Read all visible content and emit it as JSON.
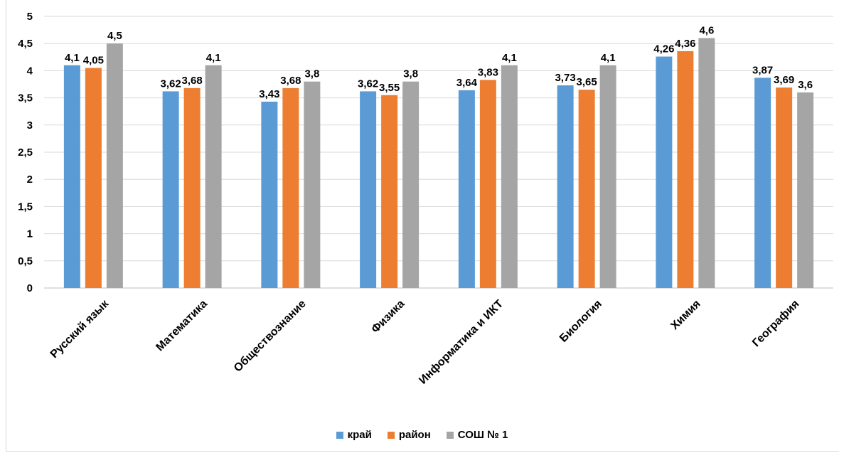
{
  "colors": {
    "kray": "#5b9bd5",
    "rayon": "#ed7d31",
    "sosh": "#a5a5a5",
    "grid": "#d9d9d9",
    "axis": "#bfbfbf"
  },
  "chart_data": {
    "type": "bar",
    "title": "",
    "xlabel": "",
    "ylabel": "",
    "ylim": [
      0,
      5
    ],
    "yticks": [
      "0",
      "0,5",
      "1",
      "1,5",
      "2",
      "2,5",
      "3",
      "3,5",
      "4",
      "4,5",
      "5"
    ],
    "yticks_values": [
      0,
      0.5,
      1,
      1.5,
      2,
      2.5,
      3,
      3.5,
      4,
      4.5,
      5
    ],
    "grid": true,
    "legend_position": "bottom",
    "categories": [
      "Русский язык",
      "Математика",
      "Обществознание",
      "Физика",
      "Информатика и ИКТ",
      "Биология",
      "Химия",
      "География"
    ],
    "series": [
      {
        "name": "край",
        "color": "#5b9bd5",
        "values": [
          4.1,
          3.62,
          3.43,
          3.62,
          3.64,
          3.73,
          4.26,
          3.87
        ],
        "labels": [
          "4,1",
          "3,62",
          "3,43",
          "3,62",
          "3,64",
          "3,73",
          "4,26",
          "3,87"
        ]
      },
      {
        "name": "район",
        "color": "#ed7d31",
        "values": [
          4.05,
          3.68,
          3.68,
          3.55,
          3.83,
          3.65,
          4.36,
          3.69
        ],
        "labels": [
          "4,05",
          "3,68",
          "3,68",
          "3,55",
          "3,83",
          "3,65",
          "4,36",
          "3,69"
        ]
      },
      {
        "name": "СОШ № 1",
        "color": "#a5a5a5",
        "values": [
          4.5,
          4.1,
          3.8,
          3.8,
          4.1,
          4.1,
          4.6,
          3.6
        ],
        "labels": [
          "4,5",
          "4,1",
          "3,8",
          "3,8",
          "4,1",
          "4,1",
          "4,6",
          "3,6"
        ]
      }
    ]
  }
}
